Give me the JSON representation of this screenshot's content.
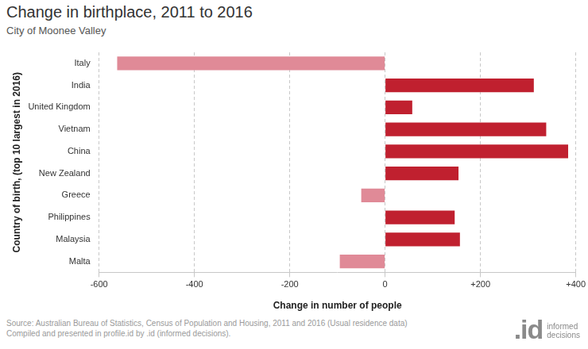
{
  "chart_data": {
    "type": "bar",
    "orientation": "horizontal",
    "title": "Change in birthplace, 2011 to 2016",
    "subtitle": "City of Moonee Valley",
    "x_label": "Change in number of people",
    "y_label": "Country of birth, (top 10 largest in 2016)",
    "categories": [
      "Italy",
      "India",
      "United Kingdom",
      "Vietnam",
      "China",
      "New Zealand",
      "Greece",
      "Philippines",
      "Malaysia",
      "Malta"
    ],
    "values": [
      -562,
      312,
      57,
      338,
      384,
      154,
      -50,
      146,
      157,
      -95
    ],
    "colors": [
      "#e08a97",
      "#c0202f",
      "#c0202f",
      "#c0202f",
      "#c0202f",
      "#c0202f",
      "#e08a97",
      "#c0202f",
      "#c0202f",
      "#e08a97"
    ],
    "xlim": [
      -600,
      400
    ],
    "xticks": [
      -600,
      -400,
      -200,
      0,
      {
        "value": 200,
        "label": "+200"
      },
      {
        "value": 400,
        "label": "+400"
      }
    ],
    "grid": true,
    "source": [
      "Source: Australian Bureau of Statistics, Census of Population and Housing, 2011 and 2016 (Usual residence data)",
      "Compiled and presented in profile.id by .id (informed decisions)."
    ],
    "logo": {
      "mark": ".id",
      "text": [
        "informed",
        "decisions"
      ]
    }
  }
}
